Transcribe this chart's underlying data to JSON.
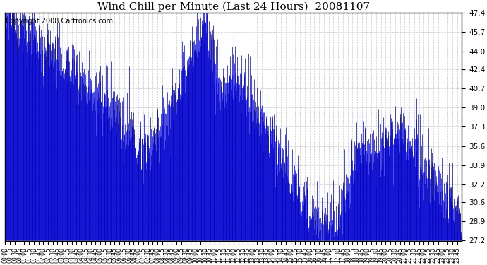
{
  "title": "Wind Chill per Minute (Last 24 Hours)  20081107",
  "copyright": "Copyright 2008 Cartronics.com",
  "ylim": [
    27.2,
    47.4
  ],
  "yticks": [
    27.2,
    28.9,
    30.6,
    32.2,
    33.9,
    35.6,
    37.3,
    39.0,
    40.7,
    42.4,
    44.0,
    45.7,
    47.4
  ],
  "line_color": "#0000cc",
  "bg_color": "#ffffff",
  "grid_color": "#c8c8c8",
  "title_fontsize": 11,
  "copyright_fontsize": 7
}
